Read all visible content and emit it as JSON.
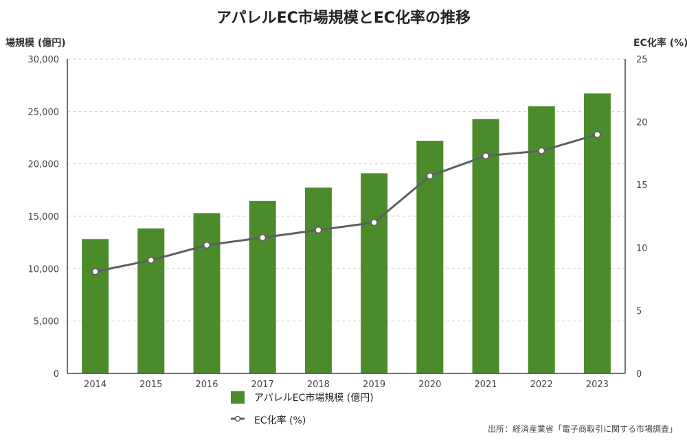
{
  "chart_data": {
    "type": "bar",
    "title": "アパレルEC市場規模とEC化率の推移",
    "categories": [
      "2014",
      "2015",
      "2016",
      "2017",
      "2018",
      "2019",
      "2020",
      "2021",
      "2022",
      "2023"
    ],
    "series": [
      {
        "name": "アパレルEC市場規模 (億円)",
        "type": "bar",
        "axis": "left",
        "color": "#4c8b2b",
        "values": [
          12822,
          13839,
          15297,
          16454,
          17728,
          19100,
          22203,
          24279,
          25499,
          26712
        ]
      },
      {
        "name": "EC化率 (%)",
        "type": "line",
        "axis": "right",
        "color": "#5f5f5f",
        "values": [
          8.1,
          9.0,
          10.2,
          10.8,
          11.4,
          12.0,
          15.7,
          17.3,
          17.7,
          19.0
        ]
      }
    ],
    "ylabel_left": "場規模 (億円)",
    "ylabel_right": "EC化率 (%)",
    "ylim_left": [
      0,
      30000
    ],
    "ylim_right": [
      0,
      25
    ],
    "yticks_left": [
      "0",
      "5,000",
      "10,000",
      "15,000",
      "20,000",
      "25,000",
      "30,000"
    ],
    "yticks_right": [
      "0",
      "5",
      "10",
      "15",
      "20",
      "25"
    ],
    "grid": "horizontal dashed",
    "legend_placement": "bottom-center",
    "source": "出所：経済産業省「電子商取引に関する市場調査」"
  }
}
